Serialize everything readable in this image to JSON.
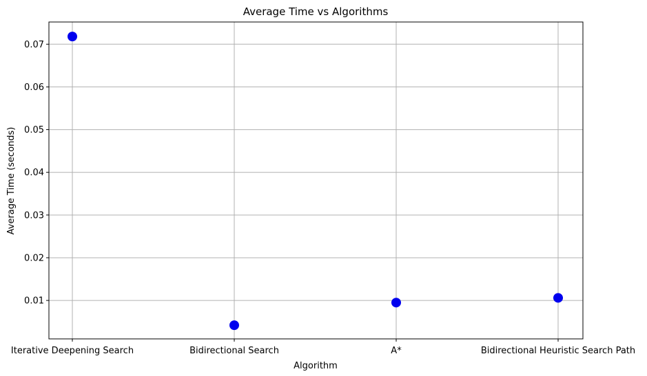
{
  "chart_data": {
    "type": "scatter",
    "title": "Average Time vs Algorithms",
    "xlabel": "Algorithm",
    "ylabel": "Average Time (seconds)",
    "categories": [
      "Iterative Deepening Search",
      "Bidirectional Search",
      "A*",
      "Bidirectional Heuristic Search Path"
    ],
    "values": [
      0.0718,
      0.0042,
      0.0095,
      0.0106
    ],
    "ylim": [
      0.001,
      0.0752
    ],
    "yticks": [
      0.01,
      0.02,
      0.03,
      0.04,
      0.05,
      0.06,
      0.07
    ],
    "ytick_labels": [
      "0.01",
      "0.02",
      "0.03",
      "0.04",
      "0.05",
      "0.06",
      "0.07"
    ],
    "grid": true,
    "marker_color": "#0000ee",
    "grid_color": "#b0b0b0"
  }
}
